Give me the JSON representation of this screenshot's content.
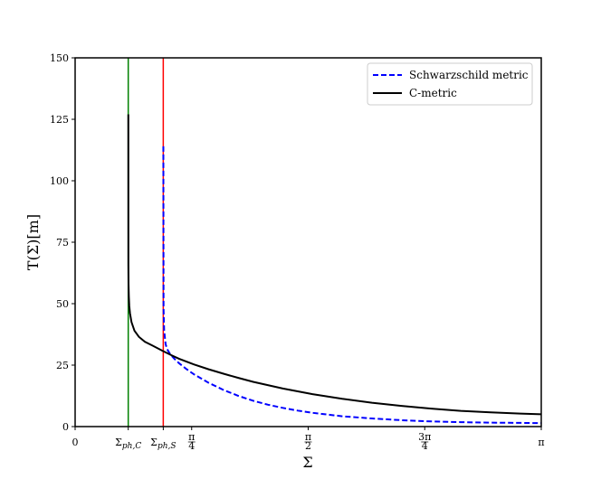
{
  "chart_data": {
    "type": "line",
    "xlabel": "Σ",
    "ylabel": "T(Σ)[m]",
    "xlim": [
      0,
      3.1416
    ],
    "ylim": [
      0,
      150
    ],
    "grid": false,
    "legend_position": "top-right",
    "x_ticks": [
      {
        "value": 0,
        "label": "0"
      },
      {
        "value": 0.358,
        "label": "Σph,C",
        "main": "Σ",
        "sub": "ph,C"
      },
      {
        "value": 0.594,
        "label": "Σph,S",
        "main": "Σ",
        "sub": "ph,S"
      },
      {
        "value": 0.7854,
        "label": "π/4",
        "num": "π",
        "den": "4"
      },
      {
        "value": 1.5708,
        "label": "π/2",
        "num": "π",
        "den": "2"
      },
      {
        "value": 2.3562,
        "label": "3π/4",
        "num": "3π",
        "den": "4"
      },
      {
        "value": 3.1416,
        "label": "π"
      }
    ],
    "y_ticks": [
      0,
      25,
      50,
      75,
      100,
      125,
      150
    ],
    "vertical_lines": [
      {
        "x": 0.358,
        "color": "#008000"
      },
      {
        "x": 0.594,
        "color": "#ff0000"
      }
    ],
    "series": [
      {
        "name": "Schwarzschild metric",
        "color": "#0000ff",
        "style": "dashed",
        "x": [
          0.5945,
          0.596,
          0.6,
          0.61,
          0.62,
          0.64,
          0.67,
          0.7,
          0.75,
          0.8,
          0.9,
          1.0,
          1.1,
          1.2,
          1.3,
          1.4,
          1.5,
          1.6,
          1.8,
          2.0,
          2.2,
          2.4,
          2.6,
          2.8,
          3.0,
          3.1416
        ],
        "y": [
          114,
          48,
          39,
          33.5,
          31.5,
          29.5,
          27.5,
          25.8,
          23.4,
          21.3,
          17.8,
          14.9,
          12.5,
          10.5,
          8.9,
          7.6,
          6.5,
          5.6,
          4.2,
          3.3,
          2.6,
          2.1,
          1.8,
          1.6,
          1.5,
          1.4
        ]
      },
      {
        "name": "C-metric",
        "color": "#000000",
        "style": "solid",
        "x": [
          0.3585,
          0.359,
          0.36,
          0.362,
          0.365,
          0.37,
          0.38,
          0.4,
          0.43,
          0.47,
          0.52,
          0.59,
          0.65,
          0.7,
          0.8,
          0.9,
          1.0,
          1.1,
          1.2,
          1.4,
          1.6,
          1.8,
          2.0,
          2.2,
          2.4,
          2.6,
          2.8,
          3.0,
          3.1416
        ],
        "y": [
          127,
          66,
          58,
          53,
          49,
          46,
          42.5,
          39,
          36.5,
          34.5,
          33,
          30.8,
          29,
          27.6,
          25.3,
          23.3,
          21.5,
          19.8,
          18.2,
          15.5,
          13.2,
          11.3,
          9.7,
          8.4,
          7.3,
          6.4,
          5.8,
          5.3,
          5.0
        ]
      }
    ]
  }
}
